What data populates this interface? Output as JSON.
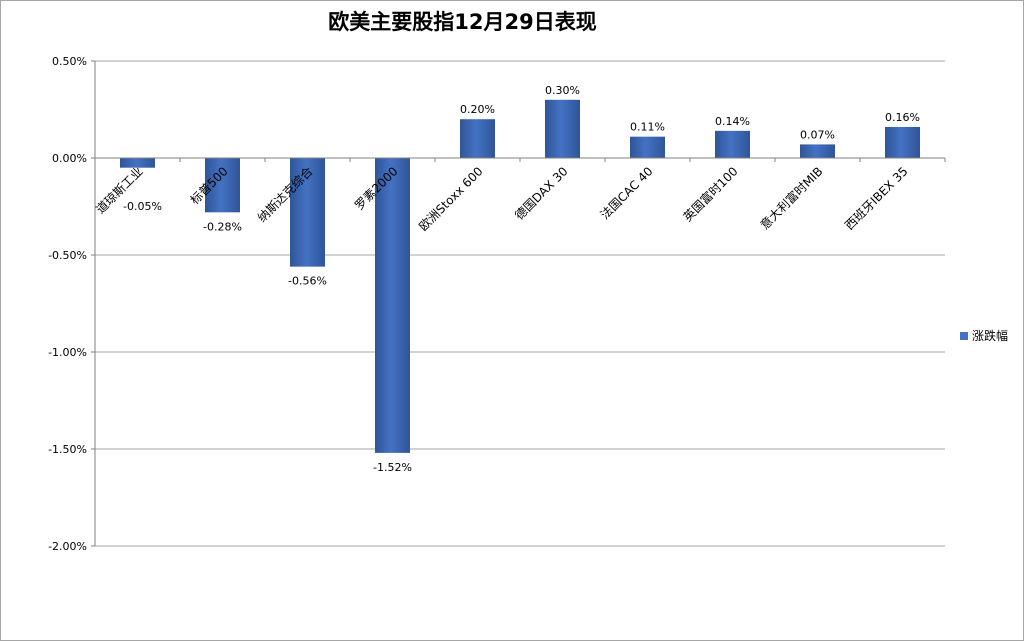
{
  "chart_data": {
    "type": "bar",
    "title": "欧美主要股指12月29日表现",
    "categories": [
      "道琼斯工业",
      "标普500",
      "纳斯达克综合",
      "罗素2000",
      "欧洲Stoxx 600",
      "德国DAX 30",
      "法国CAC 40",
      "英国富时100",
      "意大利富时MIB",
      "西班牙IBEX 35"
    ],
    "series": [
      {
        "name": "涨跌幅",
        "values": [
          -0.05,
          -0.28,
          -0.56,
          -1.52,
          0.2,
          0.3,
          0.11,
          0.14,
          0.07,
          0.16
        ],
        "labels": [
          "-0.05%",
          "-0.28%",
          "-0.56%",
          "-1.52%",
          "0.20%",
          "0.30%",
          "0.11%",
          "0.14%",
          "0.07%",
          "0.16%"
        ]
      }
    ],
    "ylim": [
      -2.0,
      0.5
    ],
    "yticks": [
      0.5,
      0.0,
      -0.5,
      -1.0,
      -1.5,
      -2.0
    ],
    "ytick_labels": [
      "0.50%",
      "0.00%",
      "-0.50%",
      "-1.00%",
      "-1.50%",
      "-2.00%"
    ],
    "grid": true,
    "legend_position": "right",
    "bar_color": "#4472c4"
  }
}
